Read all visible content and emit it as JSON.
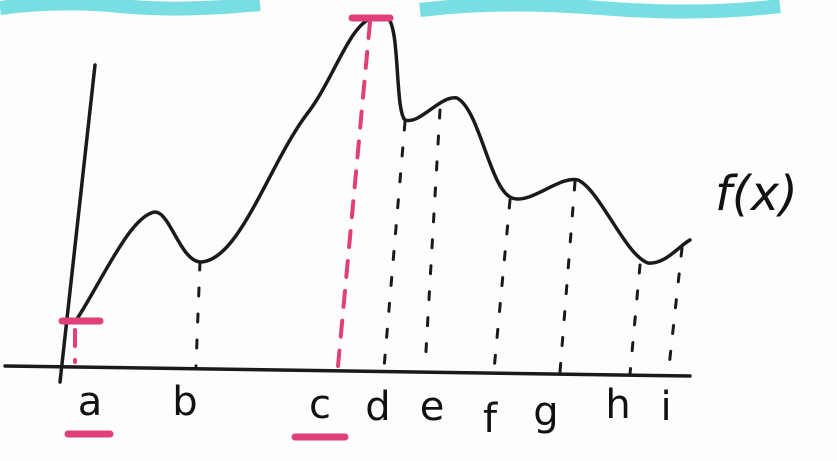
{
  "function_label": "f(x)",
  "points": [
    "a",
    "b",
    "c",
    "d",
    "e",
    "f",
    "g",
    "h",
    "i"
  ]
}
